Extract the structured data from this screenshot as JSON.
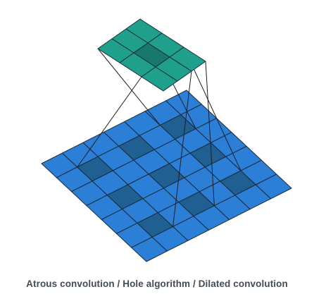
{
  "caption": "Atrous convolution / Hole algorithm / Dilated convolution",
  "input_grid": {
    "size": 7,
    "highlighted_cells": [
      [
        1,
        1
      ],
      [
        1,
        3
      ],
      [
        1,
        5
      ],
      [
        3,
        1
      ],
      [
        3,
        3
      ],
      [
        3,
        5
      ],
      [
        5,
        1
      ],
      [
        5,
        3
      ],
      [
        5,
        5
      ]
    ]
  },
  "kernel_grid": {
    "size": 3,
    "highlighted_cells": [
      [
        1,
        1
      ]
    ]
  },
  "colors": {
    "input_cell": "#2b7fd6",
    "input_cell_highlight": "#1f5f92",
    "kernel_cell": "#1fa08c",
    "kernel_cell_highlight": "#17796b",
    "grid_line": "#1c2a38",
    "connector_line": "#1e1e1e"
  }
}
